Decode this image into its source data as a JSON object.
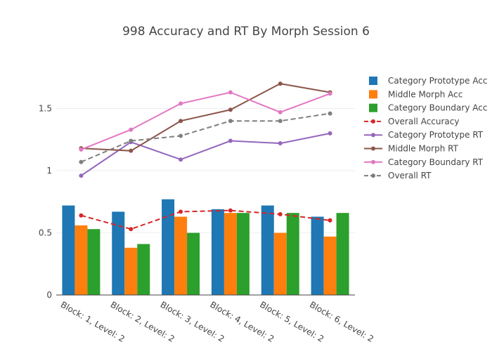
{
  "chart_data": {
    "type": "bar",
    "title": "998 Accuracy and RT By Morph Session 6",
    "xlabel": "",
    "ylabel": "",
    "ylim": [
      0,
      2
    ],
    "yticks": [
      "0",
      "0.5",
      "1",
      "1.5"
    ],
    "grid": true,
    "legend_position": "right",
    "categories": [
      "Block: 1, Level: 2",
      "Block: 2, Level: 2",
      "Block: 3, Level: 2",
      "Block: 4, Level: 2",
      "Block: 5, Level: 2",
      "Block: 6, Level: 2"
    ],
    "series": [
      {
        "name": "Category Prototype Acc",
        "kind": "bar",
        "color": "#1f77b4",
        "values": [
          0.72,
          0.67,
          0.77,
          0.69,
          0.72,
          0.63
        ]
      },
      {
        "name": "Middle Morph Acc",
        "kind": "bar",
        "color": "#ff7f0e",
        "values": [
          0.56,
          0.38,
          0.63,
          0.66,
          0.5,
          0.47
        ]
      },
      {
        "name": "Category Boundary Acc",
        "kind": "bar",
        "color": "#2ca02c",
        "values": [
          0.53,
          0.41,
          0.5,
          0.66,
          0.66,
          0.66
        ]
      },
      {
        "name": "Overall Accuracy",
        "kind": "line",
        "dash": true,
        "color": "#d62728",
        "values": [
          0.64,
          0.53,
          0.67,
          0.68,
          0.65,
          0.6
        ]
      },
      {
        "name": "Category Prototype RT",
        "kind": "line",
        "dash": false,
        "color": "#9467bd",
        "values": [
          0.96,
          1.23,
          1.09,
          1.24,
          1.22,
          1.3
        ]
      },
      {
        "name": "Middle Morph RT",
        "kind": "line",
        "dash": false,
        "color": "#8c564b",
        "values": [
          1.18,
          1.16,
          1.4,
          1.49,
          1.7,
          1.63
        ]
      },
      {
        "name": "Category Boundary RT",
        "kind": "line",
        "dash": false,
        "color": "#e377c2",
        "values": [
          1.17,
          1.33,
          1.54,
          1.63,
          1.47,
          1.62
        ]
      },
      {
        "name": "Overall RT",
        "kind": "line",
        "dash": true,
        "color": "#7f7f7f",
        "values": [
          1.07,
          1.24,
          1.28,
          1.4,
          1.4,
          1.46
        ]
      }
    ]
  }
}
